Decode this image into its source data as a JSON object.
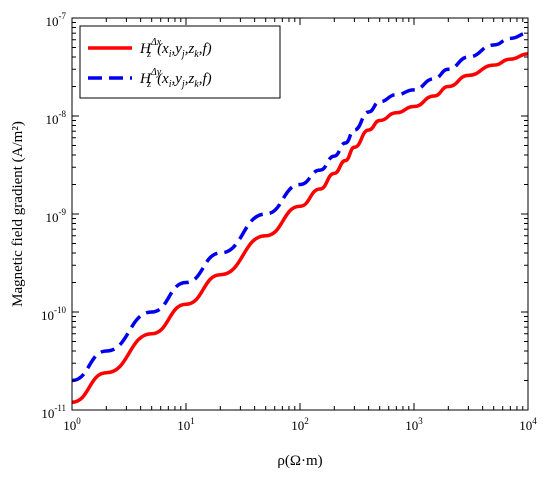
{
  "chart_data": {
    "type": "line",
    "xscale": "log",
    "yscale": "log",
    "xlim": [
      1,
      10000
    ],
    "ylim": [
      1e-11,
      1e-07
    ],
    "xlabel": "ρ(Ω·m)",
    "ylabel": "Magnetic field gradient (A/m²)",
    "xticks": [
      {
        "base": "10",
        "exp": "0"
      },
      {
        "base": "10",
        "exp": "1"
      },
      {
        "base": "10",
        "exp": "2"
      },
      {
        "base": "10",
        "exp": "3"
      },
      {
        "base": "10",
        "exp": "4"
      }
    ],
    "yticks": [
      {
        "base": "10",
        "exp": "-11"
      },
      {
        "base": "10",
        "exp": "-10"
      },
      {
        "base": "10",
        "exp": "-9"
      },
      {
        "base": "10",
        "exp": "-8"
      },
      {
        "base": "10",
        "exp": "-7"
      }
    ],
    "legend_position": "top-left",
    "series": [
      {
        "name": "H_z^Δx(x_i, y_j, z_k, f)",
        "legend_main": "H",
        "legend_sub": "z",
        "legend_sup": "Δx",
        "legend_args": "(x",
        "legend_rest": [
          [
            "i",
            ",y"
          ],
          [
            "j",
            ",z"
          ],
          [
            "k",
            ",f)"
          ]
        ],
        "color": "#ff0000",
        "dash": "solid",
        "x": [
          1,
          2,
          5,
          10,
          20,
          50,
          100,
          150,
          200,
          250,
          300,
          400,
          500,
          700,
          1000,
          1500,
          2000,
          3000,
          5000,
          7000,
          10000
        ],
        "y": [
          1.2e-11,
          2.4e-11,
          6e-11,
          1.2e-10,
          2.4e-10,
          6e-10,
          1.2e-09,
          1.8e-09,
          2.6e-09,
          3.5e-09,
          4.8e-09,
          7.2e-09,
          9e-09,
          1.08e-08,
          1.25e-08,
          1.6e-08,
          2e-08,
          2.6e-08,
          3.3e-08,
          3.8e-08,
          4.3e-08
        ]
      },
      {
        "name": "H_z^Δy(x_i, y_j, z_k, f)",
        "legend_main": "H",
        "legend_sub": "z",
        "legend_sup": "Δy",
        "legend_args": "(x",
        "legend_rest": [
          [
            "i",
            ",y"
          ],
          [
            "j",
            ",z"
          ],
          [
            "k",
            ",f)"
          ]
        ],
        "color": "#0000ee",
        "dash": "dashed",
        "x": [
          1,
          2,
          5,
          10,
          20,
          50,
          100,
          150,
          200,
          250,
          300,
          400,
          500,
          700,
          1000,
          1500,
          2000,
          3000,
          5000,
          7000,
          10000
        ],
        "y": [
          2e-11,
          4e-11,
          1e-10,
          2e-10,
          4e-10,
          1e-09,
          2e-09,
          2.8e-09,
          3.9e-09,
          5.3e-09,
          7.2e-09,
          1.1e-08,
          1.4e-08,
          1.65e-08,
          1.85e-08,
          2.4e-08,
          3e-08,
          4e-08,
          5.3e-08,
          6.2e-08,
          7e-08
        ]
      }
    ]
  }
}
